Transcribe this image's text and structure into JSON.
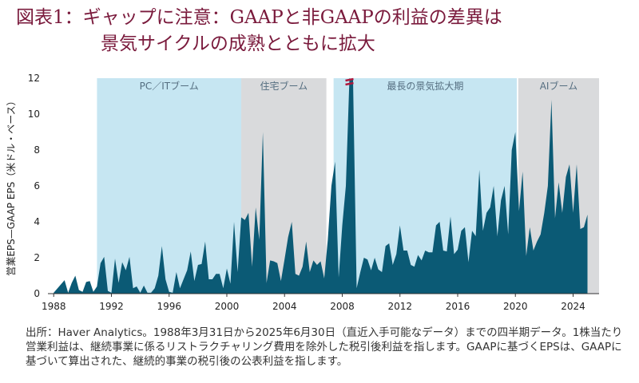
{
  "title": {
    "line1": "図表1：ギャップに注意：GAAPと非GAAPの利益の差異は",
    "line2": "景気サイクルの成熟とともに拡大"
  },
  "source_note": "出所：Haver Analytics。1988年3月31日から2025年6月30日（直近入手可能なデータ）までの四半期データ。1株当たり営業利益は、継続事業に係るリストラクチャリング費用を除外した税引後利益を指します。GAAPに基づくEPSは、GAAPに基づいて算出された、継続的事業の税引後の公表利益を指します。",
  "colors": {
    "title": "#7a1a3c",
    "series": "#0b5a75",
    "boom_blue": "#c6e6f2",
    "boom_gray": "#d9dadc",
    "break_mark": "#b0183c"
  },
  "chart_data": {
    "type": "area",
    "title": "",
    "xlabel": "",
    "ylabel": "営業EPS—GAAP EPS（米ドル・ベース）",
    "xlim": [
      1987.6,
      2025.8
    ],
    "ylim": [
      0,
      12
    ],
    "yticks": [
      0,
      2,
      4,
      6,
      8,
      10,
      12
    ],
    "xticks": [
      1988,
      1992,
      1996,
      2000,
      2004,
      2008,
      2012,
      2016,
      2020,
      2024
    ],
    "grid": false,
    "shaded_periods": [
      {
        "label": "PC／ITブーム",
        "start": 1991.0,
        "end": 2001.0,
        "color": "blue"
      },
      {
        "label": "住宅ブーム",
        "start": 2001.0,
        "end": 2006.9,
        "color": "gray"
      },
      {
        "label": "最長の景気拡大期",
        "start": 2007.4,
        "end": 2020.1,
        "color": "blue"
      },
      {
        "label": "AIブーム",
        "start": 2020.2,
        "end": 2025.8,
        "color": "gray"
      }
    ],
    "axis_break_at": 2008.5,
    "series": [
      {
        "name": "営業EPS—GAAP EPS",
        "points": [
          [
            1988.0,
            0.05
          ],
          [
            1988.75,
            0.75
          ],
          [
            1989.0,
            0.05
          ],
          [
            1989.25,
            0.6
          ],
          [
            1989.5,
            1.0
          ],
          [
            1989.75,
            0.2
          ],
          [
            1990.0,
            0.1
          ],
          [
            1990.25,
            0.65
          ],
          [
            1990.5,
            0.7
          ],
          [
            1990.75,
            0.1
          ],
          [
            1991.0,
            0.4
          ],
          [
            1991.25,
            1.7
          ],
          [
            1991.5,
            2.05
          ],
          [
            1991.75,
            0.15
          ],
          [
            1992.0,
            0.05
          ],
          [
            1992.25,
            1.95
          ],
          [
            1992.5,
            0.6
          ],
          [
            1992.75,
            1.75
          ],
          [
            1993.0,
            1.3
          ],
          [
            1993.25,
            2.05
          ],
          [
            1993.5,
            0.3
          ],
          [
            1993.75,
            0.4
          ],
          [
            1994.0,
            0.05
          ],
          [
            1994.25,
            0.45
          ],
          [
            1994.5,
            0.05
          ],
          [
            1994.75,
            0.05
          ],
          [
            1995.0,
            0.3
          ],
          [
            1995.25,
            1.0
          ],
          [
            1995.5,
            2.65
          ],
          [
            1995.75,
            0.8
          ],
          [
            1996.0,
            0.1
          ],
          [
            1996.25,
            0.05
          ],
          [
            1996.5,
            1.2
          ],
          [
            1996.75,
            0.3
          ],
          [
            1997.0,
            0.8
          ],
          [
            1997.25,
            1.3
          ],
          [
            1997.5,
            2.35
          ],
          [
            1997.75,
            0.7
          ],
          [
            1998.0,
            1.6
          ],
          [
            1998.25,
            1.65
          ],
          [
            1998.5,
            2.9
          ],
          [
            1998.75,
            0.8
          ],
          [
            1999.0,
            0.8
          ],
          [
            1999.25,
            1.1
          ],
          [
            1999.5,
            1.1
          ],
          [
            1999.75,
            0.3
          ],
          [
            2000.0,
            1.4
          ],
          [
            2000.25,
            0.55
          ],
          [
            2000.5,
            4.0
          ],
          [
            2000.75,
            1.2
          ],
          [
            2001.0,
            4.25
          ],
          [
            2001.25,
            4.1
          ],
          [
            2001.5,
            4.5
          ],
          [
            2001.75,
            1.5
          ],
          [
            2002.0,
            4.8
          ],
          [
            2002.25,
            3.0
          ],
          [
            2002.5,
            9.0
          ],
          [
            2002.75,
            0.6
          ],
          [
            2003.0,
            1.85
          ],
          [
            2003.25,
            1.8
          ],
          [
            2003.5,
            1.7
          ],
          [
            2003.75,
            0.7
          ],
          [
            2004.0,
            1.9
          ],
          [
            2004.25,
            3.15
          ],
          [
            2004.5,
            4.0
          ],
          [
            2004.75,
            1.1
          ],
          [
            2005.0,
            1.0
          ],
          [
            2005.25,
            1.5
          ],
          [
            2005.5,
            2.9
          ],
          [
            2005.75,
            1.2
          ],
          [
            2006.0,
            1.85
          ],
          [
            2006.25,
            1.6
          ],
          [
            2006.5,
            1.8
          ],
          [
            2006.75,
            0.85
          ],
          [
            2007.0,
            3.0
          ],
          [
            2007.25,
            6.0
          ],
          [
            2007.5,
            7.35
          ],
          [
            2007.75,
            0.9
          ],
          [
            2008.0,
            3.8
          ],
          [
            2008.25,
            6.0
          ],
          [
            2008.5,
            12.0
          ],
          [
            2008.75,
            11.9
          ],
          [
            2009.0,
            0.3
          ],
          [
            2009.25,
            1.2
          ],
          [
            2009.5,
            2.0
          ],
          [
            2009.75,
            1.9
          ],
          [
            2010.0,
            1.3
          ],
          [
            2010.25,
            2.0
          ],
          [
            2010.5,
            1.35
          ],
          [
            2010.75,
            1.2
          ],
          [
            2011.0,
            2.65
          ],
          [
            2011.25,
            2.8
          ],
          [
            2011.5,
            1.6
          ],
          [
            2011.75,
            2.2
          ],
          [
            2012.0,
            3.8
          ],
          [
            2012.25,
            2.4
          ],
          [
            2012.5,
            2.4
          ],
          [
            2012.75,
            1.6
          ],
          [
            2013.0,
            1.5
          ],
          [
            2013.25,
            2.15
          ],
          [
            2013.5,
            1.85
          ],
          [
            2013.75,
            2.4
          ],
          [
            2014.0,
            2.3
          ],
          [
            2014.25,
            2.3
          ],
          [
            2014.5,
            3.8
          ],
          [
            2014.75,
            4.0
          ],
          [
            2015.0,
            2.4
          ],
          [
            2015.25,
            2.35
          ],
          [
            2015.5,
            4.3
          ],
          [
            2015.75,
            2.2
          ],
          [
            2016.0,
            2.45
          ],
          [
            2016.25,
            3.5
          ],
          [
            2016.5,
            3.7
          ],
          [
            2016.75,
            1.75
          ],
          [
            2017.0,
            3.5
          ],
          [
            2017.25,
            3.2
          ],
          [
            2017.5,
            6.9
          ],
          [
            2017.75,
            3.5
          ],
          [
            2018.0,
            4.5
          ],
          [
            2018.25,
            4.8
          ],
          [
            2018.5,
            6.0
          ],
          [
            2018.75,
            3.2
          ],
          [
            2019.0,
            5.2
          ],
          [
            2019.25,
            6.0
          ],
          [
            2019.5,
            3.3
          ],
          [
            2019.75,
            8.0
          ],
          [
            2020.0,
            9.0
          ],
          [
            2020.25,
            4.6
          ],
          [
            2020.5,
            6.8
          ],
          [
            2020.75,
            2.1
          ],
          [
            2021.0,
            3.7
          ],
          [
            2021.25,
            2.4
          ],
          [
            2021.5,
            2.9
          ],
          [
            2021.75,
            3.3
          ],
          [
            2022.0,
            4.5
          ],
          [
            2022.25,
            6.0
          ],
          [
            2022.5,
            10.8
          ],
          [
            2022.75,
            4.2
          ],
          [
            2023.0,
            6.2
          ],
          [
            2023.25,
            4.5
          ],
          [
            2023.5,
            6.5
          ],
          [
            2023.75,
            7.2
          ],
          [
            2024.0,
            4.5
          ],
          [
            2024.25,
            7.2
          ],
          [
            2024.5,
            3.6
          ],
          [
            2024.75,
            3.7
          ],
          [
            2025.0,
            4.4
          ]
        ]
      }
    ]
  }
}
